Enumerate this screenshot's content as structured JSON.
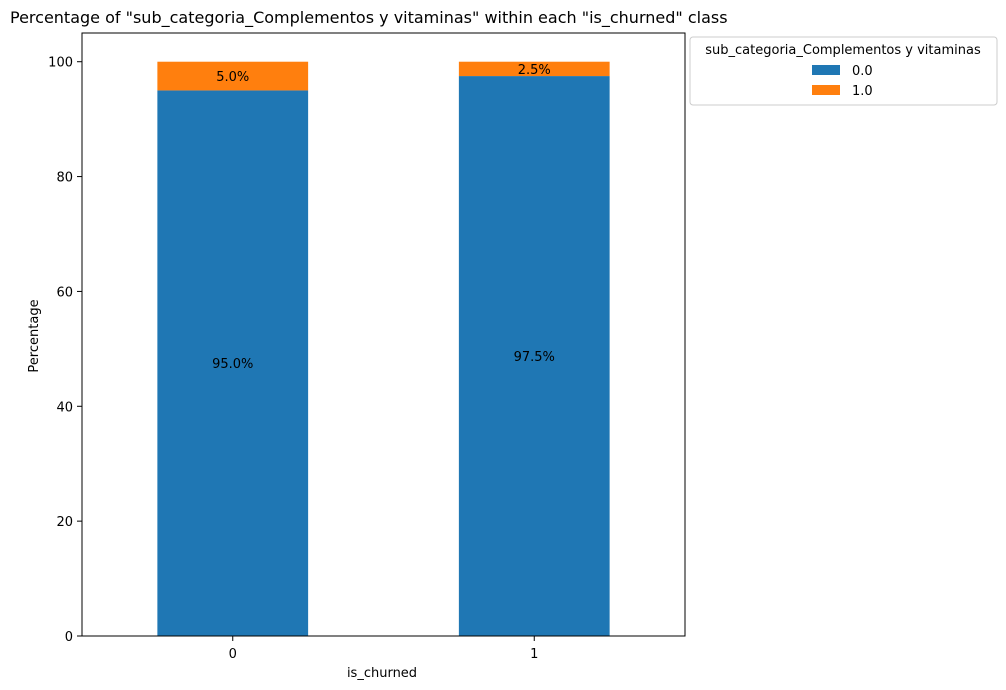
{
  "chart_data": {
    "type": "bar",
    "stacked": true,
    "title": "Percentage of \"sub_categoria_Complementos y vitaminas\" within each \"is_churned\" class",
    "xlabel": "is_churned",
    "ylabel": "Percentage",
    "categories": [
      "0",
      "1"
    ],
    "ylim": [
      0,
      105
    ],
    "yticks": [
      "0",
      "20",
      "40",
      "60",
      "80",
      "100"
    ],
    "series": [
      {
        "name": "0.0",
        "values": [
          95.0,
          97.5
        ],
        "color": "#1f77b4",
        "labels": [
          "95.0%",
          "97.5%"
        ]
      },
      {
        "name": "1.0",
        "values": [
          5.0,
          2.5
        ],
        "color": "#ff7f0e",
        "labels": [
          "5.0%",
          "2.5%"
        ]
      }
    ],
    "legend": {
      "title": "sub_categoria_Complementos y vitaminas",
      "placement": "outside-top-right"
    },
    "grid": false
  }
}
